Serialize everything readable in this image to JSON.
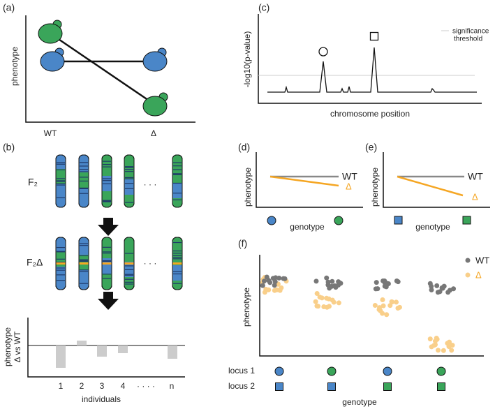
{
  "panel_a": {
    "label": "(a)",
    "ylabel": "phenotype",
    "xlabels": [
      "WT",
      "Δ"
    ]
  },
  "panel_b": {
    "label": "(b)",
    "row1": "F₂",
    "row2": "F₂Δ",
    "ellipsis": "· · ·",
    "ylabel": [
      "phenotype",
      "Δ vs WT"
    ],
    "xlabels": [
      "1",
      "2",
      "3",
      "4",
      "· · · ·",
      "n"
    ],
    "xlabel": "individuals"
  },
  "panel_c": {
    "label": "(c)",
    "ylabel": "-log10(p-value)",
    "xlabel": "chromosome position",
    "legend": [
      "significance",
      "threshold"
    ]
  },
  "panel_d": {
    "label": "(d)",
    "ylabel": "phenotype",
    "xlabel": "genotype",
    "wt": "WT",
    "delta": "Δ"
  },
  "panel_e": {
    "label": "(e)",
    "ylabel": "phenotype",
    "xlabel": "genotype",
    "wt": "WT",
    "delta": "Δ"
  },
  "panel_f": {
    "label": "(f)",
    "legend": [
      "WT",
      "Δ"
    ],
    "ylabel": "phenotype",
    "rows": [
      "locus 1",
      "locus 2"
    ],
    "xlabel": "genotype"
  }
}
